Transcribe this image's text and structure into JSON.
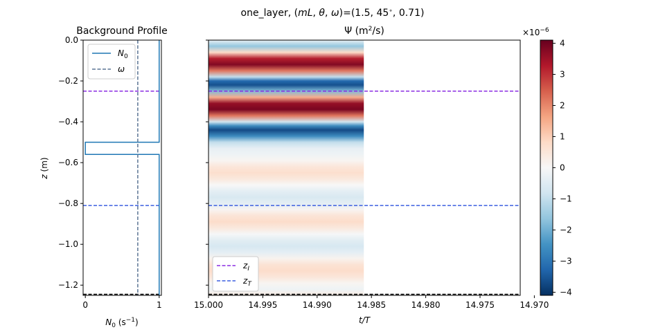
{
  "figure": {
    "suptitle": "one_layer, (mL, θ, ω)=(1.5, 45°, 0.71)"
  },
  "chart_data": [
    {
      "type": "line",
      "title": "Background Profile",
      "xlabel": "N₀ (s⁻¹)",
      "ylabel": "z (m)",
      "xlim": [
        -0.03,
        1.03
      ],
      "ylim": [
        -1.25,
        0.0
      ],
      "xticks": [
        0,
        1
      ],
      "xtick_labels": [
        "0",
        "1"
      ],
      "yticks": [
        0.0,
        -0.2,
        -0.4,
        -0.6,
        -0.8,
        -1.0,
        -1.2
      ],
      "ytick_labels": [
        "0.0",
        "−0.2",
        "−0.4",
        "−0.6",
        "−0.8",
        "−1.0",
        "−1.2"
      ],
      "legend_position": "top-left",
      "series": [
        {
          "name": "N₀",
          "color": "#1f77b4",
          "style": "solid",
          "points": [
            [
              1.0,
              0.0
            ],
            [
              1.0,
              -0.5
            ],
            [
              0.0,
              -0.5
            ],
            [
              0.0,
              -0.56
            ],
            [
              1.0,
              -0.56
            ],
            [
              1.0,
              -1.25
            ]
          ]
        },
        {
          "name": "ω",
          "color": "#5a7393",
          "style": "dashed",
          "points": [
            [
              0.71,
              0.0
            ],
            [
              0.71,
              -1.25
            ]
          ]
        }
      ],
      "hlines": [
        {
          "y": -0.25,
          "color": "#8a2be2"
        },
        {
          "y": -0.81,
          "color": "#3b5fe0"
        },
        {
          "y": -1.245,
          "color": "#000000"
        }
      ]
    },
    {
      "type": "heatmap",
      "title": "Ψ (m²/s)",
      "xlabel": "t/T",
      "xlim": [
        15.0,
        14.9713
      ],
      "ylim": [
        -1.25,
        0.0
      ],
      "xticks": [
        15.0,
        14.995,
        14.99,
        14.985,
        14.98,
        14.975,
        14.97
      ],
      "xtick_labels": [
        "15.000",
        "14.995",
        "14.990",
        "14.985",
        "14.980",
        "14.975",
        "14.970"
      ],
      "data_x_range": [
        15.0,
        14.9857
      ],
      "colormap": "RdBu_r",
      "colorbar": {
        "min": -4.1e-06,
        "max": 4.1e-06,
        "ticks": [
          4,
          3,
          2,
          1,
          0,
          -1,
          -2,
          -3,
          -4
        ],
        "tick_labels": [
          "4",
          "3",
          "2",
          "1",
          "0",
          "−1",
          "−2",
          "−3",
          "−4"
        ],
        "exponent_label": "×10⁻⁶"
      },
      "profile_z": [
        0.0,
        -0.03,
        -0.06,
        -0.09,
        -0.12,
        -0.15,
        -0.18,
        -0.2,
        -0.22,
        -0.25,
        -0.28,
        -0.31,
        -0.34,
        -0.37,
        -0.4,
        -0.42,
        -0.44,
        -0.47,
        -0.5,
        -0.53,
        -0.56,
        -0.59,
        -0.62,
        -0.65,
        -0.68,
        -0.71,
        -0.74,
        -0.77,
        -0.8,
        -0.83,
        -0.86,
        -0.89,
        -0.92,
        -0.95,
        -0.98,
        -1.01,
        -1.04,
        -1.07,
        -1.1,
        -1.13,
        -1.16,
        -1.19,
        -1.22,
        -1.25
      ],
      "profile_psi_e6": [
        -0.3,
        -1.6,
        0.8,
        3.2,
        3.8,
        2.2,
        -1.0,
        -3.2,
        -3.6,
        -1.8,
        1.5,
        3.6,
        3.9,
        2.2,
        -0.8,
        -2.6,
        -3.7,
        -2.6,
        -1.0,
        -0.35,
        -0.2,
        0.1,
        0.5,
        0.7,
        0.45,
        0.0,
        -0.4,
        -0.65,
        -0.4,
        0.1,
        0.55,
        0.75,
        0.45,
        -0.05,
        -0.45,
        -0.7,
        -0.4,
        0.15,
        0.6,
        0.75,
        0.5,
        0.1,
        -0.2,
        0.3
      ],
      "legend_position": "bottom-left",
      "series": [
        {
          "name": "z_I",
          "color": "#8a2be2",
          "style": "dashed"
        },
        {
          "name": "z_T",
          "color": "#3b5fe0",
          "style": "dashed"
        }
      ],
      "hlines": [
        {
          "y": -0.25,
          "color": "#8a2be2"
        },
        {
          "y": -0.81,
          "color": "#3b5fe0"
        },
        {
          "y": -1.245,
          "color": "#000000"
        }
      ]
    }
  ]
}
